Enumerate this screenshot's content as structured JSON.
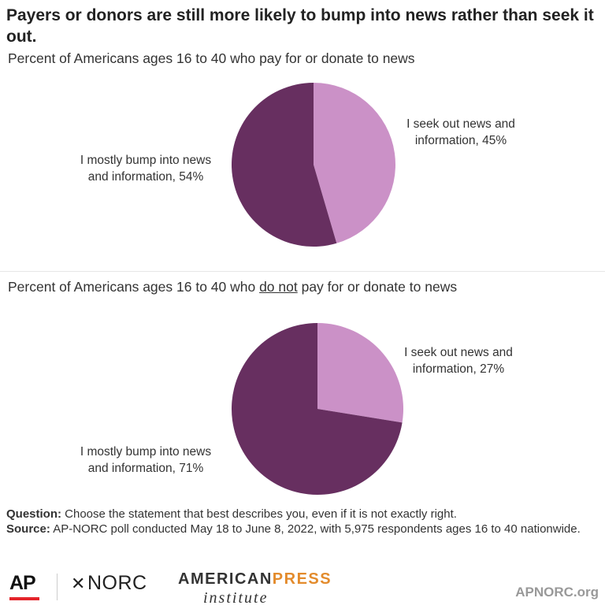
{
  "title": "Payers or donors are still more likely to bump into news rather than seek it out.",
  "subtitle1": "Percent of Americans ages 16 to 40 who pay for or donate to news",
  "subtitle2": {
    "before": "Percent of Americans ages 16 to 40 who ",
    "underlined": "do not",
    "after": " pay for or donate to news"
  },
  "colors": {
    "seek": "#cb91c7",
    "bump": "#672f60"
  },
  "chart_data": [
    {
      "type": "pie",
      "slices": [
        {
          "label_lines": [
            "I seek out news and",
            "information, 45%"
          ],
          "value": 45
        },
        {
          "label_lines": [
            "I mostly bump into news",
            "and information, 54%"
          ],
          "value": 54
        }
      ]
    },
    {
      "type": "pie",
      "slices": [
        {
          "label_lines": [
            "I seek out news and",
            "information, 27%"
          ],
          "value": 27
        },
        {
          "label_lines": [
            "I mostly bump into news",
            "and information, 71%"
          ],
          "value": 71
        }
      ]
    }
  ],
  "notes": {
    "question_label": "Question:",
    "question_text": " Choose the statement that best describes you, even if it is not exactly right.",
    "source_label": "Source:",
    "source_text": " AP-NORC poll conducted May 18 to June 8, 2022, with 5,975 respondents ages 16 to 40 nationwide."
  },
  "footer": {
    "ap": "AP",
    "norc": "NORC",
    "api_word1": "AMERICAN",
    "api_word2": "PRESS",
    "api_word3": "institute",
    "site": "APNORC.org"
  }
}
